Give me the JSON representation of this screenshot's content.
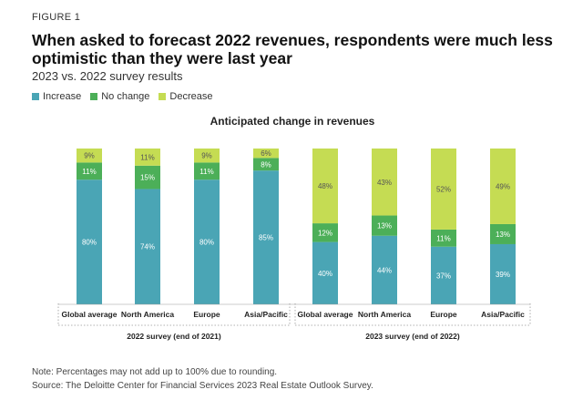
{
  "figure_label": "FIGURE 1",
  "title": "When asked to forecast 2022 revenues, respondents were much less optimistic than they were last year",
  "subtitle": "2023 vs. 2022 survey results",
  "note": "Note: Percentages may not add up to 100% due to rounding.",
  "source": "Source: The Deloitte Center for Financial Services 2023 Real Estate Outlook Survey.",
  "colors": {
    "increase": "#4aa5b5",
    "no_change": "#4caf58",
    "decrease": "#c5dc53"
  },
  "chart_data": {
    "type": "bar",
    "stacked": true,
    "title": "Anticipated change in revenues",
    "categories": [
      "Global average",
      "North America",
      "Europe",
      "Asia/Pacific",
      "Global average",
      "North America",
      "Europe",
      "Asia/Pacific"
    ],
    "groups": [
      {
        "label": "2022 survey (end of 2021)",
        "category_indices": [
          0,
          1,
          2,
          3
        ]
      },
      {
        "label": "2023 survey (end of 2022)",
        "category_indices": [
          4,
          5,
          6,
          7
        ]
      }
    ],
    "series": [
      {
        "name": "Increase",
        "values": [
          80,
          74,
          80,
          85,
          40,
          44,
          37,
          39
        ]
      },
      {
        "name": "No change",
        "values": [
          11,
          15,
          11,
          8,
          12,
          13,
          11,
          13
        ]
      },
      {
        "name": "Decrease",
        "values": [
          9,
          11,
          9,
          6,
          48,
          43,
          52,
          49
        ]
      }
    ],
    "data_label_suffix": "%",
    "legend_position": "top-left"
  }
}
